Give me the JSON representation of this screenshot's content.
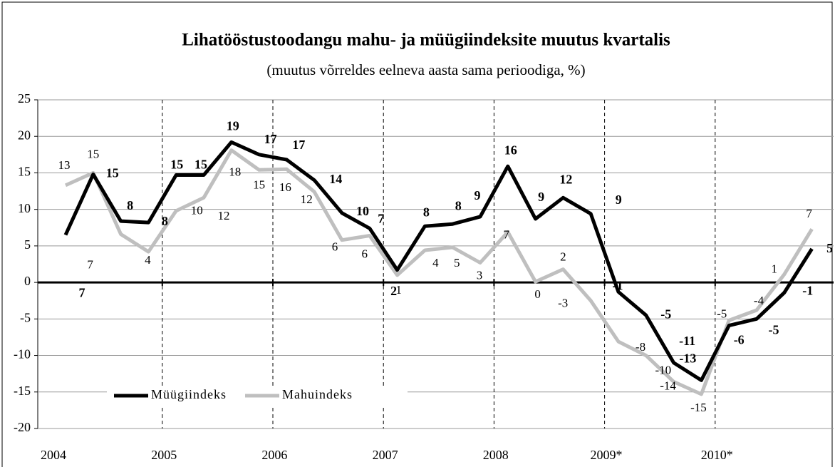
{
  "chart_data": {
    "type": "line",
    "title": "Lihatööstustoodangu mahu- ja müügiindeksite muutus kvartalis",
    "subtitle": "(muutus võrreldes eelneva aasta sama perioodiga, %)",
    "categories": [
      "2004",
      null,
      null,
      null,
      "2005",
      null,
      null,
      null,
      "2006",
      null,
      null,
      null,
      "2007",
      null,
      null,
      null,
      "2008",
      null,
      null,
      null,
      "2009*",
      null,
      null,
      null,
      "2010*",
      null,
      null,
      null
    ],
    "series": [
      {
        "name": "Müügiindeks",
        "color": "#000000",
        "values": [
          6.5,
          14.8,
          8.4,
          8.2,
          14.7,
          14.7,
          19.2,
          17.5,
          16.8,
          14.0,
          9.5,
          7.4,
          1.7,
          7.7,
          8.0,
          9.0,
          15.9,
          8.7,
          11.6,
          9.4,
          -1.3,
          -4.5,
          -11.0,
          -13.4,
          -5.9,
          -5.0,
          -1.4,
          4.6
        ],
        "value_labels": [
          "7",
          "15",
          "8",
          "8",
          "15",
          "15",
          "19",
          "17",
          "17",
          "14",
          "10",
          "7",
          "2",
          "8",
          "8",
          "9",
          "16",
          "9",
          "12",
          "9",
          "-1",
          "-5",
          "-11",
          "-13",
          "-6",
          "-5",
          "-1",
          "5"
        ]
      },
      {
        "name": "Mahuindeks",
        "color": "#bfbfbf",
        "values": [
          13.3,
          15.0,
          6.6,
          4.2,
          9.8,
          11.6,
          18.1,
          15.4,
          15.5,
          12.4,
          5.8,
          6.4,
          1.0,
          4.4,
          4.8,
          2.7,
          6.9,
          0.1,
          1.8,
          -2.5,
          -8.1,
          -10.0,
          -13.6,
          -15.3,
          -5.2,
          -3.8,
          1.1,
          7.3
        ],
        "value_labels": [
          "13",
          "15",
          "7",
          "4",
          "10",
          "12",
          "18",
          "15",
          "16",
          "12",
          "6",
          "6",
          "1",
          "4",
          "5",
          "3",
          "7",
          "0",
          "2",
          "-3",
          "-8",
          "-10",
          "-14",
          "-15",
          "-5",
          "-4",
          "1",
          "7"
        ]
      }
    ],
    "ylim": [
      -20,
      25
    ],
    "yticks": [
      -20,
      -15,
      -10,
      -5,
      0,
      5,
      10,
      15,
      20,
      25
    ],
    "grid": true,
    "legend": "lower left"
  }
}
